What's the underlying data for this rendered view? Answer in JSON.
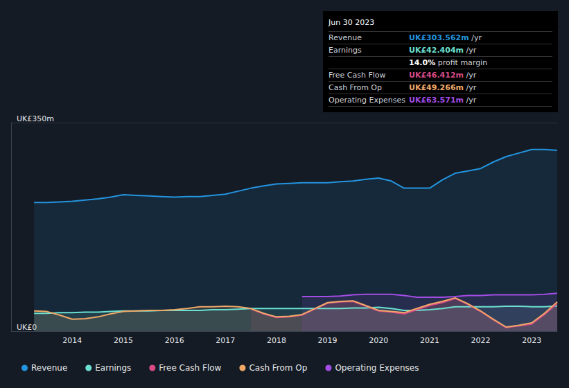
{
  "chart_data": {
    "type": "line",
    "x": [
      2013.25,
      2013.5,
      2013.75,
      2014.0,
      2014.25,
      2014.5,
      2014.75,
      2015.0,
      2015.25,
      2015.5,
      2015.75,
      2016.0,
      2016.25,
      2016.5,
      2016.75,
      2017.0,
      2017.25,
      2017.5,
      2017.75,
      2018.0,
      2018.25,
      2018.5,
      2018.75,
      2019.0,
      2019.25,
      2019.5,
      2019.75,
      2020.0,
      2020.25,
      2020.5,
      2020.75,
      2021.0,
      2021.25,
      2021.5,
      2021.75,
      2022.0,
      2022.25,
      2022.5,
      2022.75,
      2023.0,
      2023.25,
      2023.5
    ],
    "series": [
      {
        "name": "Revenue",
        "color": "#2394df",
        "values": [
          216,
          216,
          217,
          218,
          220,
          222,
          225,
          229,
          228,
          227,
          226,
          225,
          226,
          226,
          228,
          230,
          235,
          240,
          244,
          247,
          248,
          249,
          249,
          249,
          251,
          252,
          255,
          257,
          252,
          240,
          240,
          240,
          254,
          265,
          269,
          273,
          284,
          293,
          299,
          305,
          305,
          303.562
        ]
      },
      {
        "name": "Earnings",
        "color": "#6ce0d0",
        "values": [
          30,
          30,
          31,
          31,
          32,
          32,
          33,
          34,
          34,
          34,
          35,
          35,
          35,
          35,
          36,
          36,
          37,
          38,
          38,
          38,
          38,
          38,
          38,
          38,
          38,
          39,
          39,
          40,
          38,
          35,
          35,
          36,
          38,
          41,
          41,
          41,
          41,
          42,
          42,
          41,
          41,
          42.404
        ]
      },
      {
        "name": "Free Cash Flow",
        "color": "#d84b85",
        "values": [
          null,
          null,
          null,
          null,
          null,
          null,
          null,
          null,
          null,
          null,
          null,
          null,
          null,
          null,
          null,
          null,
          null,
          37,
          29,
          23,
          24,
          27,
          37,
          47,
          49,
          50,
          42,
          34,
          32,
          29,
          36,
          43,
          48,
          55,
          45,
          33,
          19,
          6,
          9,
          12,
          28,
          46.412
        ]
      },
      {
        "name": "Cash From Op",
        "color": "#f0a867",
        "values": [
          34,
          33,
          27,
          20,
          21,
          24,
          29,
          33,
          34,
          35,
          35,
          36,
          38,
          41,
          41,
          42,
          41,
          38,
          30,
          24,
          25,
          28,
          38,
          48,
          50,
          51,
          43,
          35,
          33,
          31,
          38,
          45,
          50,
          56,
          46,
          34,
          20,
          7,
          10,
          14,
          30,
          49.266
        ]
      },
      {
        "name": "Operating Expenses",
        "color": "#a24de3",
        "values": [
          null,
          null,
          null,
          null,
          null,
          null,
          null,
          null,
          null,
          null,
          null,
          null,
          null,
          null,
          null,
          null,
          null,
          null,
          null,
          null,
          null,
          58,
          58,
          58,
          59,
          61,
          62,
          62,
          62,
          60,
          57,
          57,
          57,
          58,
          60,
          60,
          61,
          61,
          61,
          61,
          62,
          63.571
        ]
      }
    ],
    "xlim": [
      2012.8,
      2023.5
    ],
    "xticks": [
      2014,
      2015,
      2016,
      2017,
      2018,
      2019,
      2020,
      2021,
      2022,
      2023
    ],
    "ylim": [
      0,
      350
    ],
    "yticks": [
      {
        "value": 0,
        "label": "UK£0"
      },
      {
        "value": 350,
        "label": "UK£350m"
      }
    ],
    "grid": true,
    "legend": "bottom",
    "info_box": {
      "title": "Jun 30 2023",
      "rows": [
        {
          "label": "Revenue",
          "value": "UK£303.562m",
          "unit": "/yr",
          "color": "#2394df"
        },
        {
          "label": "Earnings",
          "value": "UK£42.404m",
          "unit": "/yr",
          "color": "#6ce0d0"
        },
        {
          "label": "",
          "value": "14.0%",
          "unit": "profit margin",
          "color": "#ffffff"
        },
        {
          "label": "Free Cash Flow",
          "value": "UK£46.412m",
          "unit": "/yr",
          "color": "#d84b85"
        },
        {
          "label": "Cash From Op",
          "value": "UK£49.266m",
          "unit": "/yr",
          "color": "#f0a867"
        },
        {
          "label": "Operating Expenses",
          "value": "UK£63.571m",
          "unit": "/yr",
          "color": "#a24de3"
        }
      ]
    }
  }
}
